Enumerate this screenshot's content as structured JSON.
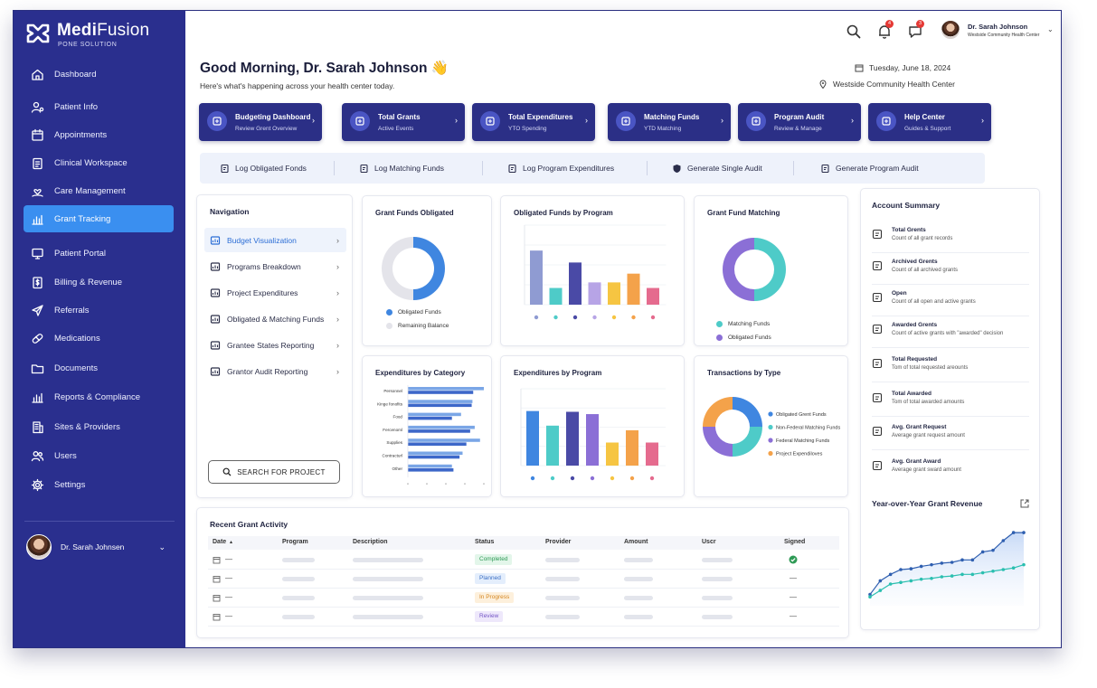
{
  "brand": {
    "name_bold": "Medi",
    "name_light": "Fusion",
    "subtitle": "PONE SOLUTION"
  },
  "sidebar": {
    "items": [
      {
        "label": "Dashboard",
        "icon": "home-icon"
      },
      {
        "label": "Patient Info",
        "icon": "user-gear-icon"
      },
      {
        "label": "Appointments",
        "icon": "calendar-icon"
      },
      {
        "label": "Clinical Workspace",
        "icon": "clipboard-icon"
      },
      {
        "label": "Care Management",
        "icon": "hand-heart-icon"
      },
      {
        "label": "Grant Tracking",
        "icon": "bar-chart-icon",
        "active": true
      },
      {
        "label": "Patient Portal",
        "icon": "monitor-icon"
      },
      {
        "label": "Billing & Revenue",
        "icon": "dollar-doc-icon"
      },
      {
        "label": "Referrals",
        "icon": "send-icon"
      },
      {
        "label": "Medications",
        "icon": "pill-icon"
      },
      {
        "label": "Documents",
        "icon": "folder-icon"
      },
      {
        "label": "Reports & Compliance",
        "icon": "bar-chart-icon"
      },
      {
        "label": "Sites & Providers",
        "icon": "building-icon"
      },
      {
        "label": "Users",
        "icon": "users-icon"
      },
      {
        "label": "Settings",
        "icon": "gear-icon"
      }
    ],
    "user_name": "Dr. Sarah Johnsen"
  },
  "topbar": {
    "notification_count": "4",
    "message_count": "3",
    "user_name": "Dr. Sarah Johnson",
    "user_org": "Westside Community Health Center"
  },
  "header": {
    "greeting": "Good Morning, Dr. Sarah Johnson",
    "emoji": "👋",
    "subtitle": "Here's what's happening across your health center today.",
    "date": "Tuesday, June 18, 2024",
    "location": "Westside Community Health Center"
  },
  "quick_cards": [
    {
      "title": "Budgeting Dashboard",
      "sub": "Review Grent Overview"
    },
    {
      "title": "Total Grants",
      "sub": "Active Events"
    },
    {
      "title": "Total Expenditures",
      "sub": "YTO Spending"
    },
    {
      "title": "Matching Funds",
      "sub": "YTD Matching"
    },
    {
      "title": "Program Audit",
      "sub": "Review & Manage"
    },
    {
      "title": "Help Center",
      "sub": "Guides & Support"
    }
  ],
  "actions": [
    {
      "label": "Log Obligated Fonds"
    },
    {
      "label": "Log Matching Funds"
    },
    {
      "label": "Log Program Expenditures"
    },
    {
      "label": "Generate Single Audit"
    },
    {
      "label": "Generate Program Audit"
    }
  ],
  "navigation": {
    "title": "Navigation",
    "items": [
      {
        "label": "Budget Visualization",
        "active": true
      },
      {
        "label": "Programs Breakdown"
      },
      {
        "label": "Project Expenditures"
      },
      {
        "label": "Obligated & Matching Funds"
      },
      {
        "label": "Grantee States Reporting"
      },
      {
        "label": "Grantor Audit Reporting"
      }
    ],
    "search_label": "SEARCH FOR PROJECT"
  },
  "colors": {
    "sidebar": "#2a2f8e",
    "accent": "#3a8ff0",
    "card": "#2b2f86",
    "teal": "#4ecbc8",
    "purple": "#8b6fd6",
    "blue": "#3f86e0",
    "orange": "#f4a24a",
    "pink": "#e56b8e",
    "navy": "#3b3a8e",
    "yellow": "#f6c542"
  },
  "chart_data": [
    {
      "type": "pie",
      "title": "Grant Funds Obligated",
      "labels": [
        "Obligated Funds",
        "Remaining Balance"
      ],
      "values": [
        50,
        50
      ],
      "colors": [
        "#3f86e0",
        "#e4e4ea"
      ]
    },
    {
      "type": "bar",
      "title": "Obligated Funds by Program",
      "values": [
        68,
        21,
        53,
        28,
        28,
        39,
        21
      ],
      "colors": [
        "#8f9bd2",
        "#4ecbc8",
        "#4a4aa6",
        "#b7a4e6",
        "#f6c542",
        "#f4a24a",
        "#e56b8e"
      ],
      "ylim": [
        0,
        100
      ]
    },
    {
      "type": "pie",
      "title": "Grant Fund Matching",
      "labels": [
        "Matching Funds",
        "Obligated Funds"
      ],
      "values": [
        50,
        50
      ],
      "colors": [
        "#4ecbc8",
        "#8b6fd6"
      ]
    },
    {
      "type": "bar",
      "orientation": "horizontal",
      "title": "Expenditures by Category",
      "categories": [
        "Personnel",
        "Kinge fonofits",
        "Food",
        "Fercenoml",
        "Supplies",
        "Contracturl",
        "Other"
      ],
      "series": [
        {
          "values": [
            100,
            85,
            70,
            88,
            95,
            72,
            58
          ]
        },
        {
          "values": [
            86,
            84,
            58,
            82,
            77,
            68,
            60
          ]
        }
      ],
      "colors": [
        "#7aa6e6",
        "#3d67c9"
      ],
      "xlim": [
        0,
        100
      ]
    },
    {
      "type": "bar",
      "title": "Expenditures by Program",
      "values": [
        71,
        52,
        70,
        67,
        30,
        46,
        30
      ],
      "colors": [
        "#3f86e0",
        "#4ecbc8",
        "#4a4aa6",
        "#8b6fd6",
        "#f6c542",
        "#f4a24a",
        "#e56b8e"
      ],
      "ylim": [
        0,
        100
      ]
    },
    {
      "type": "pie",
      "title": "Transactions by Type",
      "labels": [
        "Obligated Grent Funds",
        "Non-Federal Matching Funds",
        "Federal Matching Funds",
        "Project Expendiloves"
      ],
      "values": [
        25,
        25,
        25,
        25
      ],
      "colors": [
        "#3f86e0",
        "#4ecbc8",
        "#8b6fd6",
        "#f4a24a"
      ]
    },
    {
      "type": "line",
      "title": "Year-over-Year Grant Revenue",
      "series": [
        {
          "values": [
            5,
            22,
            30,
            36,
            37,
            40,
            42,
            44,
            45,
            48,
            48,
            58,
            60,
            72,
            82,
            82
          ]
        },
        {
          "values": [
            2,
            10,
            18,
            20,
            22,
            24,
            25,
            27,
            28,
            30,
            30,
            32,
            34,
            36,
            38,
            42
          ]
        }
      ],
      "colors": [
        "#2f5fb0",
        "#2bbfb0"
      ]
    }
  ],
  "account_summary": {
    "title": "Account Summary",
    "items": [
      {
        "name": "Total Grents",
        "desc": "Count of all grant records"
      },
      {
        "name": "Archived Grents",
        "desc": "Count of all archived grants"
      },
      {
        "name": "Open",
        "desc": "Count of all open and active grants"
      },
      {
        "name": "Awarded Grents",
        "desc": "Count of active grants with \"awarded\" decision"
      },
      {
        "name": "Total Requested",
        "desc": "Tom of total requested areounts"
      },
      {
        "name": "Total Awarded",
        "desc": "Tom of total awarded amounts"
      },
      {
        "name": "Avg. Grant Request",
        "desc": "Average grant request amount"
      },
      {
        "name": "Avg. Grant Award",
        "desc": "Average grant sward amount"
      }
    ],
    "revenue_title": "Year-over-Year Grant Revenue"
  },
  "recent_activity": {
    "title": "Recent Grant Activity",
    "columns": [
      "Date",
      "Program",
      "Description",
      "Status",
      "Provider",
      "Amount",
      "Uscr",
      "Signed"
    ],
    "rows": [
      {
        "date": "—",
        "status": "Completed",
        "signed": "check"
      },
      {
        "date": "—",
        "status": "Planned",
        "signed": "—"
      },
      {
        "date": "—",
        "status": "In Progress",
        "signed": "—"
      },
      {
        "date": "—",
        "status": "Review",
        "signed": "—"
      }
    ]
  }
}
